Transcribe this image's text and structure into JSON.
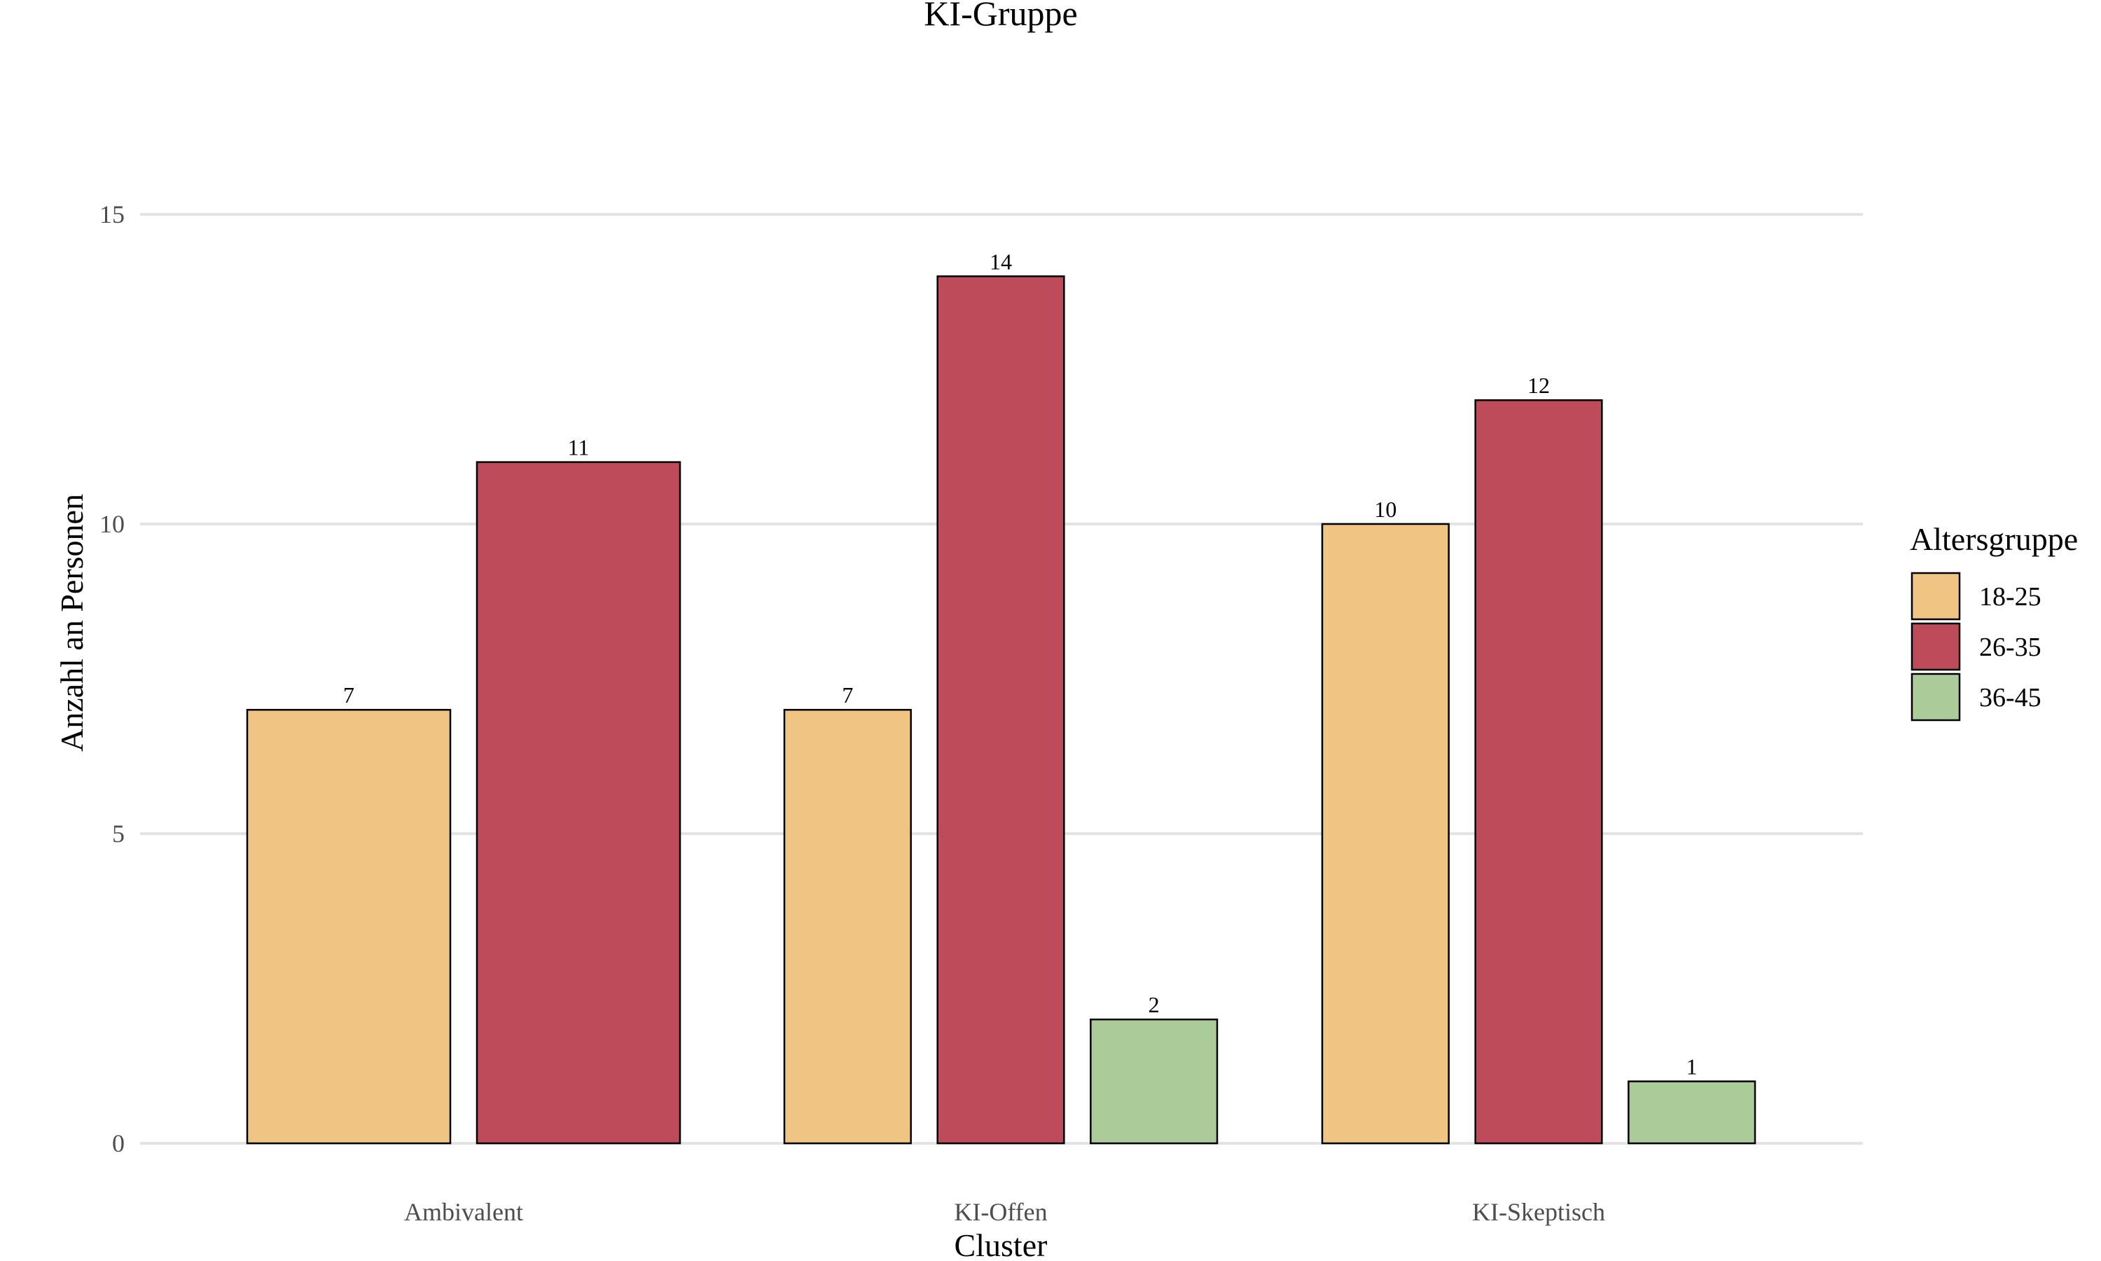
{
  "chart_data": {
    "type": "bar",
    "title": "KI-Gruppe",
    "xlabel": "Cluster",
    "ylabel": "Anzahl an Personen",
    "categories": [
      "Ambivalent",
      "KI-Offen",
      "KI-Skeptisch"
    ],
    "series": [
      {
        "name": "18-25",
        "color": "#f0c584",
        "values": [
          7,
          7,
          10
        ]
      },
      {
        "name": "26-35",
        "color": "#bd4b5a",
        "values": [
          11,
          14,
          12
        ]
      },
      {
        "name": "36-45",
        "color": "#abcc99",
        "values": [
          null,
          2,
          1
        ]
      }
    ],
    "ylim": [
      0,
      15
    ],
    "yticks": [
      0,
      5,
      10,
      15
    ],
    "grid": true,
    "legend": {
      "title": "Altersgruppe",
      "position": "right"
    }
  }
}
